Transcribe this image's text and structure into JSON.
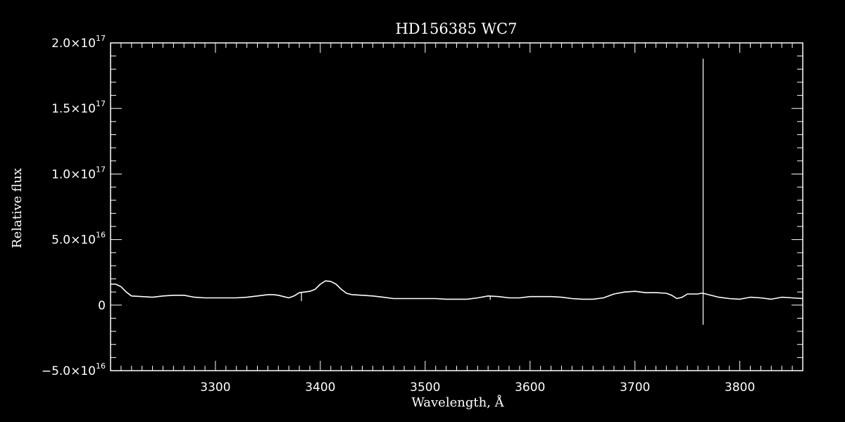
{
  "chart_data": {
    "type": "line",
    "title": "HD156385  WC7",
    "xlabel": "Wavelength, Å",
    "ylabel": "Relative flux",
    "xlim": [
      3200,
      3860
    ],
    "ylim": [
      -5e+16,
      2e+17
    ],
    "xticks": [
      3300,
      3400,
      3500,
      3600,
      3700,
      3800
    ],
    "xtick_labels": [
      "3300",
      "3400",
      "3500",
      "3600",
      "3700",
      "3800"
    ],
    "yticks": [
      -5e+16,
      0,
      5e+16,
      1e+17,
      1.5e+17,
      2e+17
    ],
    "ytick_labels": [
      {
        "mantissa": "−5.0×10",
        "exp": "16"
      },
      {
        "mantissa": "0",
        "exp": ""
      },
      {
        "mantissa": "5.0×10",
        "exp": "16"
      },
      {
        "mantissa": "1.0×10",
        "exp": "17"
      },
      {
        "mantissa": "1.5×10",
        "exp": "17"
      },
      {
        "mantissa": "2.0×10",
        "exp": "17"
      }
    ],
    "colors": {
      "background": "#000000",
      "line": "#ffffff"
    },
    "series": [
      {
        "x": [
          3200,
          3205,
          3210,
          3215,
          3220,
          3230,
          3240,
          3250,
          3260,
          3270,
          3280,
          3290,
          3300,
          3310,
          3320,
          3330,
          3340,
          3350,
          3355,
          3360,
          3365,
          3370,
          3375,
          3380,
          3385,
          3390,
          3395,
          3400,
          3405,
          3410,
          3415,
          3420,
          3425,
          3430,
          3440,
          3450,
          3460,
          3470,
          3480,
          3490,
          3500,
          3510,
          3520,
          3530,
          3540,
          3550,
          3560,
          3570,
          3580,
          3590,
          3600,
          3610,
          3620,
          3630,
          3640,
          3650,
          3660,
          3670,
          3680,
          3690,
          3700,
          3710,
          3720,
          3730,
          3735,
          3740,
          3745,
          3750,
          3755,
          3760,
          3763,
          3765,
          3770,
          3780,
          3790,
          3800,
          3810,
          3820,
          3830,
          3840,
          3850,
          3860
        ],
        "y": [
          1.6e+16,
          1.6e+16,
          1.4e+16,
          1e+16,
          7000000000000000.0,
          6500000000000000.0,
          6000000000000000.0,
          7000000000000000.0,
          7500000000000000.0,
          7500000000000000.0,
          6000000000000000.0,
          5500000000000000.0,
          5500000000000000.0,
          5500000000000000.0,
          5500000000000000.0,
          6000000000000000.0,
          7000000000000000.0,
          8000000000000000.0,
          8000000000000000.0,
          7500000000000000.0,
          6500000000000000.0,
          5500000000000000.0,
          7000000000000000.0,
          9500000000000000.0,
          1e+16,
          1.05e+16,
          1.2e+16,
          1.6e+16,
          1.85e+16,
          1.8e+16,
          1.6e+16,
          1.2e+16,
          9000000000000000.0,
          8000000000000000.0,
          7500000000000000.0,
          7000000000000000.0,
          6000000000000000.0,
          5000000000000000.0,
          5000000000000000.0,
          5000000000000000.0,
          5000000000000000.0,
          5000000000000000.0,
          4500000000000000.0,
          4500000000000000.0,
          4500000000000000.0,
          5500000000000000.0,
          7000000000000000.0,
          6500000000000000.0,
          5500000000000000.0,
          5500000000000000.0,
          6500000000000000.0,
          6500000000000000.0,
          6500000000000000.0,
          6000000000000000.0,
          5000000000000000.0,
          4500000000000000.0,
          4500000000000000.0,
          5500000000000000.0,
          8500000000000000.0,
          1e+16,
          1.05e+16,
          9500000000000000.0,
          9500000000000000.0,
          9000000000000000.0,
          7500000000000000.0,
          5000000000000000.0,
          6000000000000000.0,
          8500000000000000.0,
          8500000000000000.0,
          8500000000000000.0,
          9000000000000000.0,
          9000000000000000.0,
          8000000000000000.0,
          6000000000000000.0,
          5000000000000000.0,
          4500000000000000.0,
          6000000000000000.0,
          5500000000000000.0,
          4500000000000000.0,
          6000000000000000.0,
          5500000000000000.0,
          5000000000000000.0
        ]
      }
    ],
    "spikes": [
      {
        "x": 3765,
        "ymin": -1.5e+16,
        "ymax": 1.88e+17
      },
      {
        "x": 3382,
        "ymin": 3000000000000000.0,
        "ymax": 9500000000000000.0
      },
      {
        "x": 3562,
        "ymin": 4000000000000000.0,
        "ymax": 7000000000000000.0
      }
    ]
  }
}
